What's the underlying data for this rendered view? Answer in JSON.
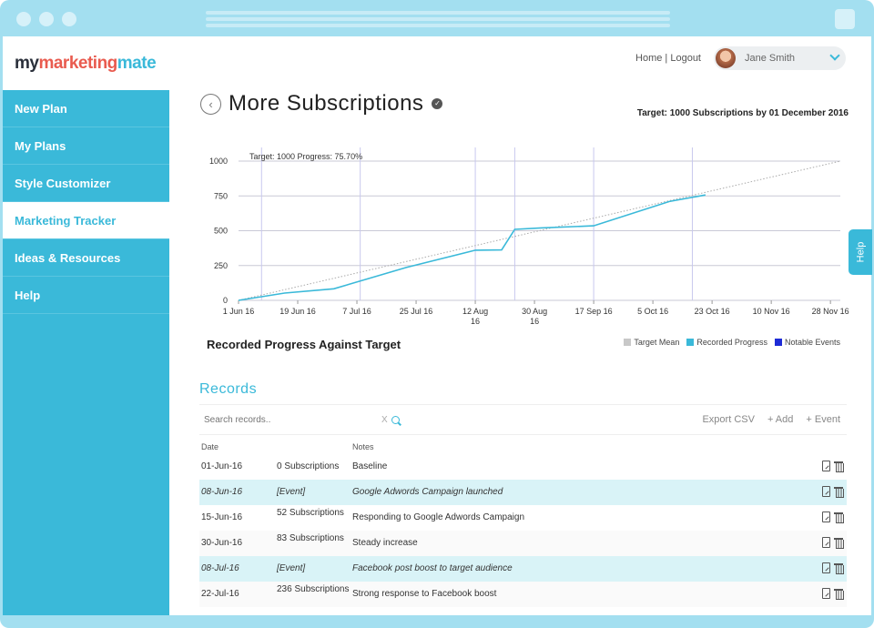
{
  "logo": {
    "part1": "my",
    "part2": "marketing",
    "part3": "mate"
  },
  "nav": {
    "items": [
      {
        "label": "New Plan"
      },
      {
        "label": "My Plans"
      },
      {
        "label": "Style Customizer"
      },
      {
        "label": "Marketing Tracker"
      },
      {
        "label": "Ideas & Resources"
      },
      {
        "label": "Help"
      }
    ],
    "active_index": 3
  },
  "topbar": {
    "home": "Home",
    "separator": "|",
    "logout": "Logout",
    "user_name": "Jane Smith"
  },
  "page": {
    "title": "More Subscriptions",
    "target_text": "Target: 1000 Subscriptions by 01 December 2016"
  },
  "chart_data": {
    "type": "line",
    "annotation": "Target: 1000 Progress: 75.70%",
    "caption": "Recorded Progress Against Target",
    "x_ticks": [
      "1 Jun 16",
      "19 Jun 16",
      "7 Jul 16",
      "25 Jul 16",
      "12 Aug 16",
      "30 Aug 16",
      "17 Sep 16",
      "5 Oct 16",
      "23 Oct 16",
      "10 Nov 16",
      "28 Nov 16"
    ],
    "y_ticks": [
      0,
      250,
      500,
      750,
      1000
    ],
    "ylim": [
      0,
      1000
    ],
    "xlim": [
      "2016-06-01",
      "2016-12-01"
    ],
    "legend": [
      "Target Mean",
      "Recorded Progress",
      "Notable Events"
    ],
    "legend_colors": [
      "#c8c8c8",
      "#3ab9d9",
      "#1d2bd6"
    ],
    "series": [
      {
        "name": "Target Mean",
        "x": [
          "2016-06-01",
          "2016-12-01"
        ],
        "values": [
          0,
          1000
        ]
      },
      {
        "name": "Recorded Progress",
        "x": [
          "2016-06-01",
          "2016-06-15",
          "2016-06-30",
          "2016-07-22",
          "2016-08-12",
          "2016-08-20",
          "2016-08-24",
          "2016-09-01",
          "2016-09-17",
          "2016-10-10",
          "2016-10-21"
        ],
        "values": [
          0,
          52,
          83,
          236,
          360,
          362,
          510,
          520,
          535,
          710,
          757
        ]
      }
    ],
    "event_dates": [
      "2016-06-08",
      "2016-07-08",
      "2016-08-12",
      "2016-08-24",
      "2016-09-17",
      "2016-10-17"
    ]
  },
  "records": {
    "title": "Records",
    "search_placeholder": "Search records..",
    "clear": "X",
    "export": "Export CSV",
    "add": "+ Add",
    "event": "+ Event",
    "headers": {
      "date": "Date",
      "notes": "Notes"
    },
    "rows": [
      {
        "date": "01-Jun-16",
        "value": "0 Subscriptions",
        "note": "Baseline"
      },
      {
        "date": "08-Jun-16",
        "value": "[Event]",
        "note": "Google Adwords Campaign launched"
      },
      {
        "date": "15-Jun-16",
        "value": "52 Subscriptions",
        "note": "Responding to Google Adwords Campaign"
      },
      {
        "date": "30-Jun-16",
        "value": "83 Subscriptions",
        "note": "Steady increase"
      },
      {
        "date": "08-Jul-16",
        "value": "[Event]",
        "note": "Facebook post boost to target audience"
      },
      {
        "date": "22-Jul-16",
        "value": "236 Subscriptions",
        "note": "Strong response to Facebook boost"
      }
    ]
  },
  "help_tab": "Help"
}
